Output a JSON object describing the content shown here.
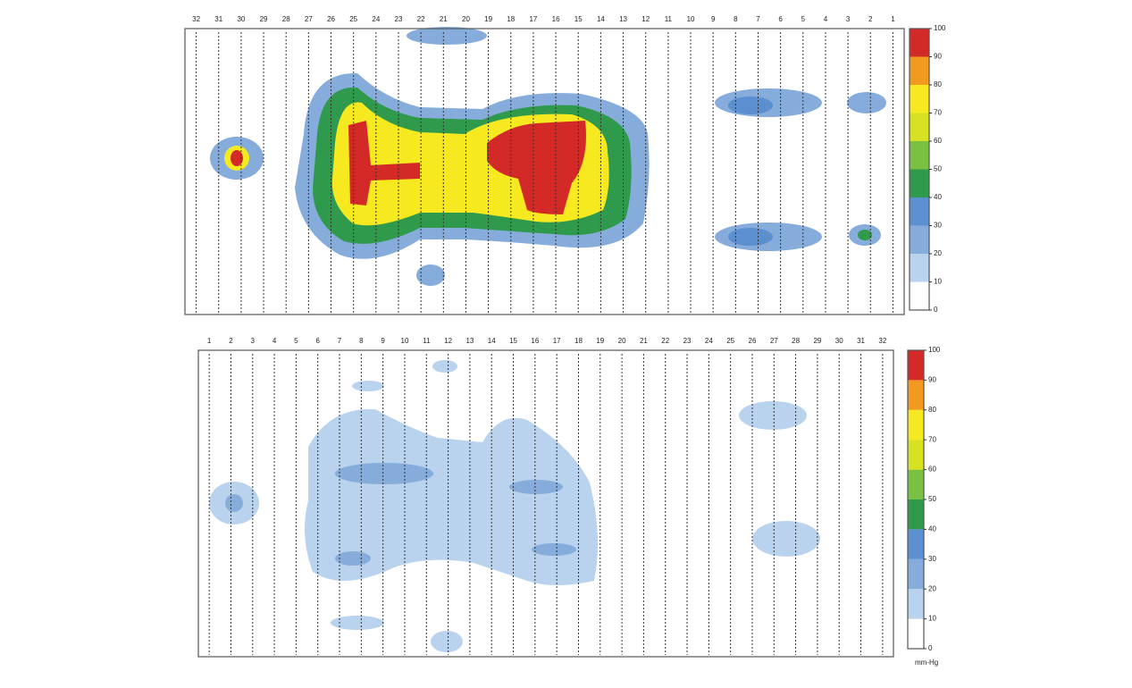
{
  "panels": [
    {
      "columns": [
        "32",
        "31",
        "30",
        "29",
        "28",
        "27",
        "26",
        "25",
        "24",
        "23",
        "22",
        "21",
        "20",
        "19",
        "18",
        "17",
        "16",
        "15",
        "14",
        "13",
        "12",
        "11",
        "10",
        "9",
        "8",
        "7",
        "6",
        "5",
        "4",
        "3",
        "2",
        "1"
      ],
      "colorbar": {
        "ticks": [
          0,
          10,
          20,
          30,
          40,
          50,
          60,
          70,
          80,
          90,
          100
        ],
        "colors": [
          "#ffffff",
          "#b9d2ee",
          "#86acdc",
          "#5b8fcf",
          "#2f9a4c",
          "#79c043",
          "#d8e022",
          "#f6e91f",
          "#f29a20",
          "#d42a27"
        ]
      }
    },
    {
      "columns": [
        "1",
        "2",
        "3",
        "4",
        "5",
        "6",
        "7",
        "8",
        "9",
        "10",
        "11",
        "12",
        "13",
        "14",
        "15",
        "16",
        "17",
        "18",
        "19",
        "20",
        "21",
        "22",
        "23",
        "24",
        "25",
        "26",
        "27",
        "28",
        "29",
        "30",
        "31",
        "32"
      ],
      "colorbar": {
        "ticks": [
          0,
          10,
          20,
          30,
          40,
          50,
          60,
          70,
          80,
          90,
          100
        ],
        "colors": [
          "#ffffff",
          "#b9d2ee",
          "#86acdc",
          "#5b8fcf",
          "#2f9a4c",
          "#79c043",
          "#d8e022",
          "#f6e91f",
          "#f29a20",
          "#d42a27"
        ]
      },
      "unit": "mm-Hg"
    }
  ]
}
